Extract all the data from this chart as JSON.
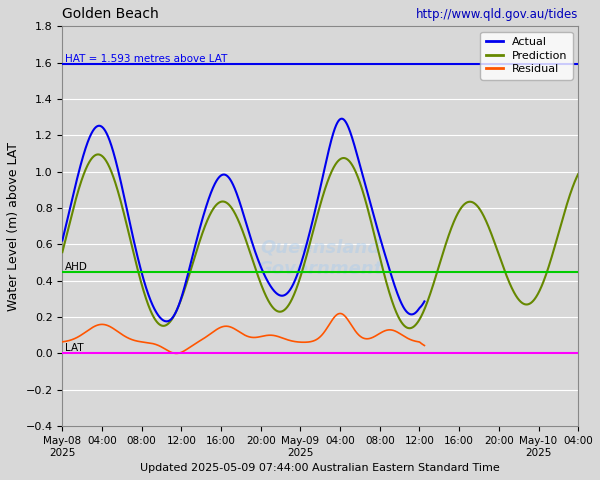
{
  "title_left": "Golden Beach",
  "title_right": "http://www.qld.gov.au/tides",
  "xlabel_bottom": "Updated 2025-05-09 07:44:00 Australian Eastern Standard Time",
  "ylabel": "Water Level (m) above LAT",
  "ylim": [
    -0.4,
    1.8
  ],
  "yticks": [
    -0.4,
    -0.2,
    0.0,
    0.2,
    0.4,
    0.6,
    0.8,
    1.0,
    1.2,
    1.4,
    1.6,
    1.8
  ],
  "hat_value": 1.593,
  "hat_label": "HAT = 1.593 metres above LAT",
  "ahd_value": 0.447,
  "ahd_label": "AHD",
  "lat_value": 0.0,
  "lat_label": "LAT",
  "hat_color": "#0000ee",
  "ahd_color": "#00cc00",
  "lat_color": "#ff00ff",
  "actual_color": "#0000ee",
  "prediction_color": "#668800",
  "residual_color": "#ff5500",
  "bg_color": "#d8d8d8",
  "legend_entries": [
    "Actual",
    "Prediction",
    "Residual"
  ],
  "legend_colors": [
    "#0000ee",
    "#668800",
    "#ff5500"
  ],
  "num_hours": 52,
  "actual_end_hours": 36.5,
  "x_tick_positions": [
    0,
    4,
    8,
    12,
    16,
    20,
    24,
    28,
    32,
    36,
    40,
    44,
    48,
    52
  ],
  "x_tick_labels": [
    "May-08\n2025",
    "04:00",
    "08:00",
    "12:00",
    "16:00",
    "20:00",
    "May-09\n2025",
    "04:00",
    "08:00",
    "12:00",
    "16:00",
    "20:00",
    "May-10\n2025",
    "04:00"
  ]
}
